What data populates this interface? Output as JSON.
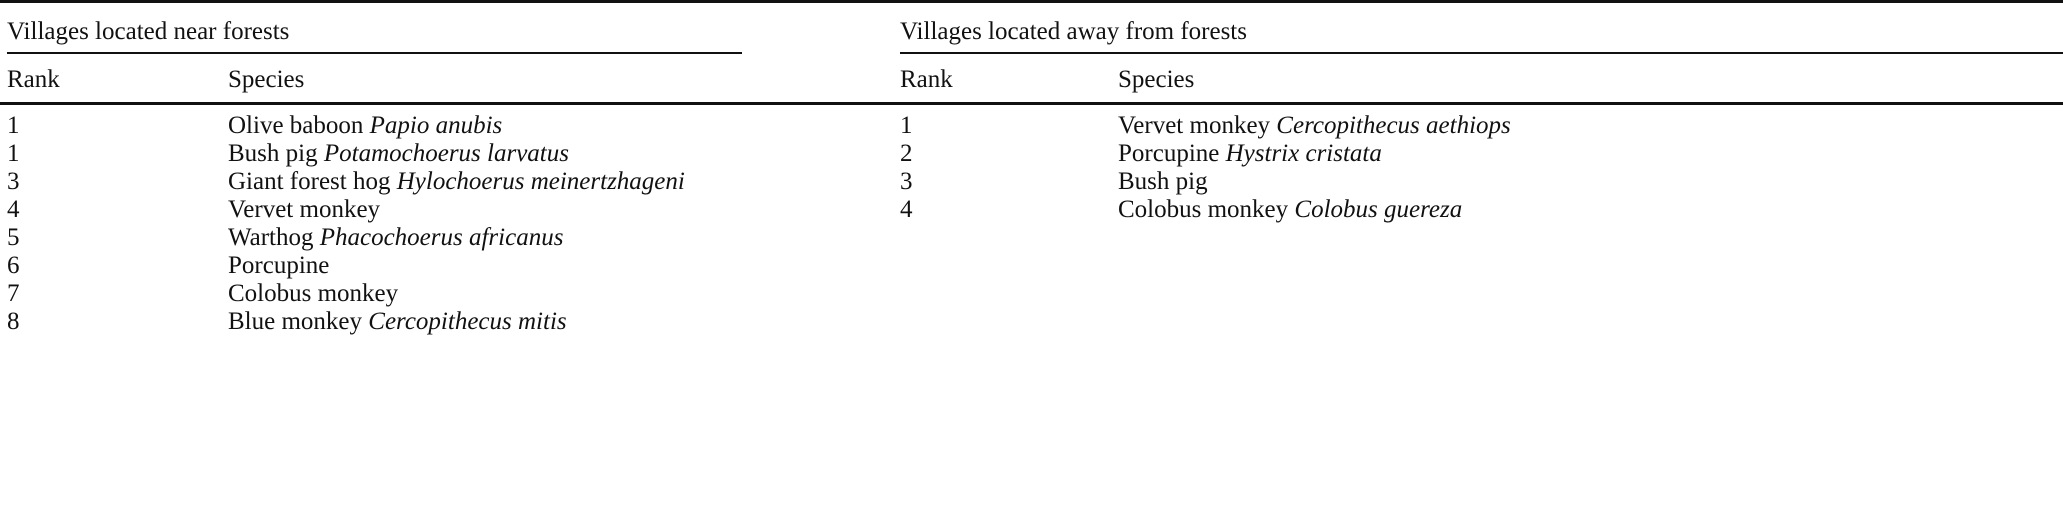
{
  "groups": [
    {
      "title": "Villages located near forests",
      "headers": {
        "rank": "Rank",
        "species": "Species"
      },
      "rows": [
        {
          "rank": "1",
          "common": "Olive baboon",
          "scientific": "Papio anubis"
        },
        {
          "rank": "1",
          "common": "Bush pig",
          "scientific": "Potamochoerus larvatus"
        },
        {
          "rank": "3",
          "common": "Giant forest hog",
          "scientific": "Hylochoerus meinertzhageni"
        },
        {
          "rank": "4",
          "common": "Vervet monkey",
          "scientific": ""
        },
        {
          "rank": "5",
          "common": "Warthog",
          "scientific": "Phacochoerus africanus"
        },
        {
          "rank": "6",
          "common": "Porcupine",
          "scientific": ""
        },
        {
          "rank": "7",
          "common": "Colobus monkey",
          "scientific": ""
        },
        {
          "rank": "8",
          "common": "Blue monkey",
          "scientific": "Cercopithecus mitis"
        }
      ]
    },
    {
      "title": "Villages located away from forests",
      "headers": {
        "rank": "Rank",
        "species": "Species"
      },
      "rows": [
        {
          "rank": "1",
          "common": "Vervet monkey",
          "scientific": "Cercopithecus aethiops"
        },
        {
          "rank": "2",
          "common": "Porcupine",
          "scientific": "Hystrix cristata"
        },
        {
          "rank": "3",
          "common": "Bush pig",
          "scientific": ""
        },
        {
          "rank": "4",
          "common": "Colobus monkey",
          "scientific": "Colobus guereza"
        }
      ]
    }
  ]
}
